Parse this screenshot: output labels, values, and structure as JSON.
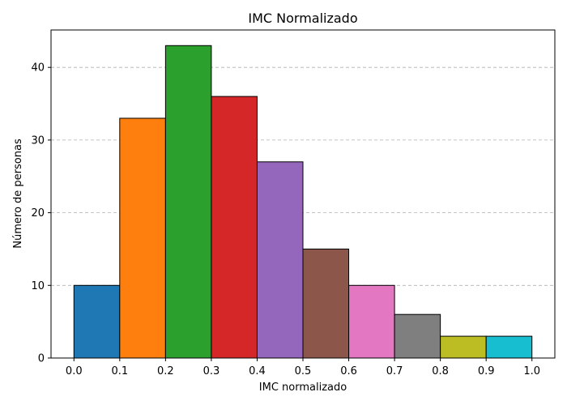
{
  "chart_data": {
    "type": "bar",
    "title": "IMC Normalizado",
    "xlabel": "IMC normalizado",
    "ylabel": "Número de personas",
    "bins": [
      {
        "start": 0.0,
        "end": 0.1,
        "value": 10,
        "color": "#1f77b4"
      },
      {
        "start": 0.1,
        "end": 0.2,
        "value": 33,
        "color": "#ff7f0e"
      },
      {
        "start": 0.2,
        "end": 0.3,
        "value": 43,
        "color": "#2ca02c"
      },
      {
        "start": 0.3,
        "end": 0.4,
        "value": 36,
        "color": "#d62728"
      },
      {
        "start": 0.4,
        "end": 0.5,
        "value": 27,
        "color": "#9467bd"
      },
      {
        "start": 0.5,
        "end": 0.6,
        "value": 15,
        "color": "#8c564b"
      },
      {
        "start": 0.6,
        "end": 0.7,
        "value": 10,
        "color": "#e377c2"
      },
      {
        "start": 0.7,
        "end": 0.8,
        "value": 6,
        "color": "#7f7f7f"
      },
      {
        "start": 0.8,
        "end": 0.9,
        "value": 3,
        "color": "#bcbd22"
      },
      {
        "start": 0.9,
        "end": 1.0,
        "value": 3,
        "color": "#17becf"
      }
    ],
    "xticks": [
      "0.0",
      "0.1",
      "0.2",
      "0.3",
      "0.4",
      "0.5",
      "0.6",
      "0.7",
      "0.8",
      "0.9",
      "1.0"
    ],
    "yticks": [
      0,
      10,
      20,
      30,
      40
    ],
    "xlim": [
      -0.05,
      1.05
    ],
    "ylim": [
      0,
      45.15
    ],
    "grid": "y-dashed",
    "bar_edge_color": "#000000"
  }
}
